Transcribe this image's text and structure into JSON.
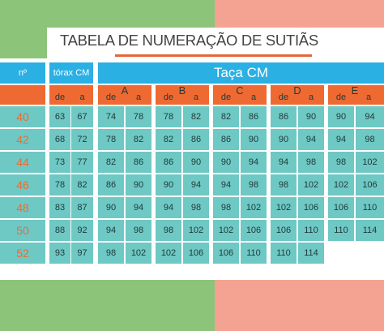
{
  "title": "TABELA DE NUMERAÇÃO DE SUTIÃS",
  "header": {
    "no_label": "nº",
    "torax_label": "tórax CM",
    "taca_label": "Taça CM",
    "de_label": "de",
    "a_label": "a",
    "cups": [
      "A",
      "B",
      "C",
      "D",
      "E"
    ]
  },
  "rows": [
    {
      "size": "40",
      "torax": [
        "63",
        "67"
      ],
      "cups": [
        [
          "74",
          "78"
        ],
        [
          "78",
          "82"
        ],
        [
          "82",
          "86"
        ],
        [
          "86",
          "90"
        ],
        [
          "90",
          "94"
        ]
      ]
    },
    {
      "size": "42",
      "torax": [
        "68",
        "72"
      ],
      "cups": [
        [
          "78",
          "82"
        ],
        [
          "82",
          "86"
        ],
        [
          "86",
          "90"
        ],
        [
          "90",
          "94"
        ],
        [
          "94",
          "98"
        ]
      ]
    },
    {
      "size": "44",
      "torax": [
        "73",
        "77"
      ],
      "cups": [
        [
          "82",
          "86"
        ],
        [
          "86",
          "90"
        ],
        [
          "90",
          "94"
        ],
        [
          "94",
          "98"
        ],
        [
          "98",
          "102"
        ]
      ]
    },
    {
      "size": "46",
      "torax": [
        "78",
        "82"
      ],
      "cups": [
        [
          "86",
          "90"
        ],
        [
          "90",
          "94"
        ],
        [
          "94",
          "98"
        ],
        [
          "98",
          "102"
        ],
        [
          "102",
          "106"
        ]
      ]
    },
    {
      "size": "48",
      "torax": [
        "83",
        "87"
      ],
      "cups": [
        [
          "90",
          "94"
        ],
        [
          "94",
          "98"
        ],
        [
          "98",
          "102"
        ],
        [
          "102",
          "106"
        ],
        [
          "106",
          "110"
        ]
      ]
    },
    {
      "size": "50",
      "torax": [
        "88",
        "92"
      ],
      "cups": [
        [
          "94",
          "98"
        ],
        [
          "98",
          "102"
        ],
        [
          "102",
          "106"
        ],
        [
          "106",
          "110"
        ],
        [
          "110",
          "114"
        ]
      ]
    },
    {
      "size": "52",
      "torax": [
        "93",
        "97"
      ],
      "cups": [
        [
          "98",
          "102"
        ],
        [
          "102",
          "106"
        ],
        [
          "106",
          "110"
        ],
        [
          "110",
          "114"
        ]
      ]
    }
  ]
}
